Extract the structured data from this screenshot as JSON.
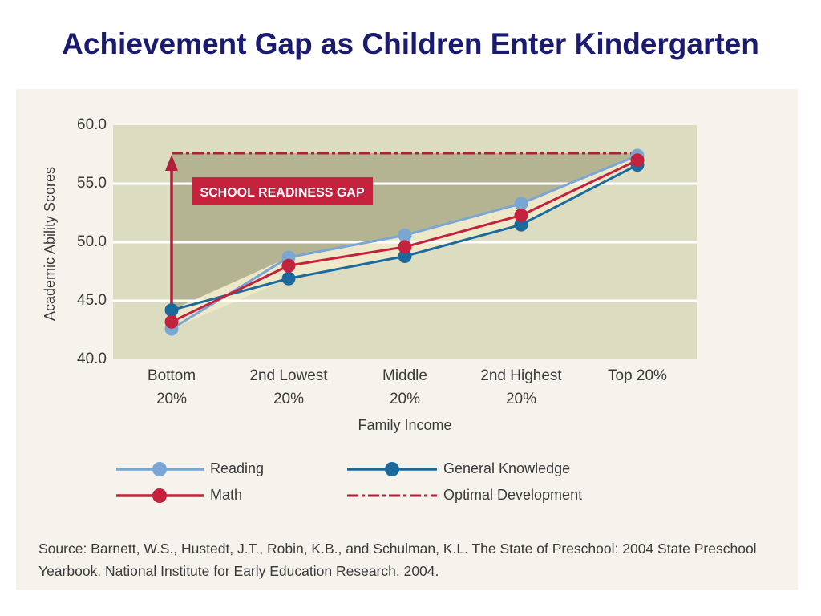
{
  "slide": {
    "title": "Achievement Gap as Children Enter Kindergarten",
    "source": "Source: Barnett, W.S., Hustedt, J.T., Robin, K.B., and Schulman, K.L. The State of Preschool: 2004 State Preschool Yearbook. National Institute for Early Education Research. 2004."
  },
  "colors": {
    "reading": "#7aa6d4",
    "general_knowledge": "#1b6a9e",
    "math": "#c4213d",
    "optimal": "#b0203a",
    "gap_area": "#b4b492",
    "plot_bg": "#dcdcc0",
    "band": "#ece8c8"
  },
  "chart_data": {
    "type": "line",
    "title": "",
    "xlabel": "Family Income",
    "ylabel": "Academic Ability Scores",
    "ylim": [
      40,
      60
    ],
    "yticks": [
      "60.0",
      "55.0",
      "50.0",
      "45.0",
      "40.0"
    ],
    "categories": [
      [
        "Bottom",
        "20%"
      ],
      [
        "2nd Lowest",
        "20%"
      ],
      [
        "Middle",
        "20%"
      ],
      [
        "2nd Highest",
        "20%"
      ],
      [
        "Top 20%"
      ]
    ],
    "series": [
      {
        "name": "Reading",
        "values": [
          42.6,
          48.7,
          50.6,
          53.3,
          57.4
        ]
      },
      {
        "name": "General Knowledge",
        "values": [
          44.2,
          46.9,
          48.8,
          51.5,
          56.6
        ]
      },
      {
        "name": "Math",
        "values": [
          43.2,
          48.0,
          49.6,
          52.3,
          57.0
        ]
      },
      {
        "name": "Optimal Development",
        "values": [
          57.6,
          57.6,
          57.6,
          57.6,
          57.6
        ]
      }
    ],
    "annotation": "SCHOOL READINESS GAP",
    "legend": [
      "Reading",
      "General Knowledge",
      "Math",
      "Optimal Development"
    ]
  }
}
